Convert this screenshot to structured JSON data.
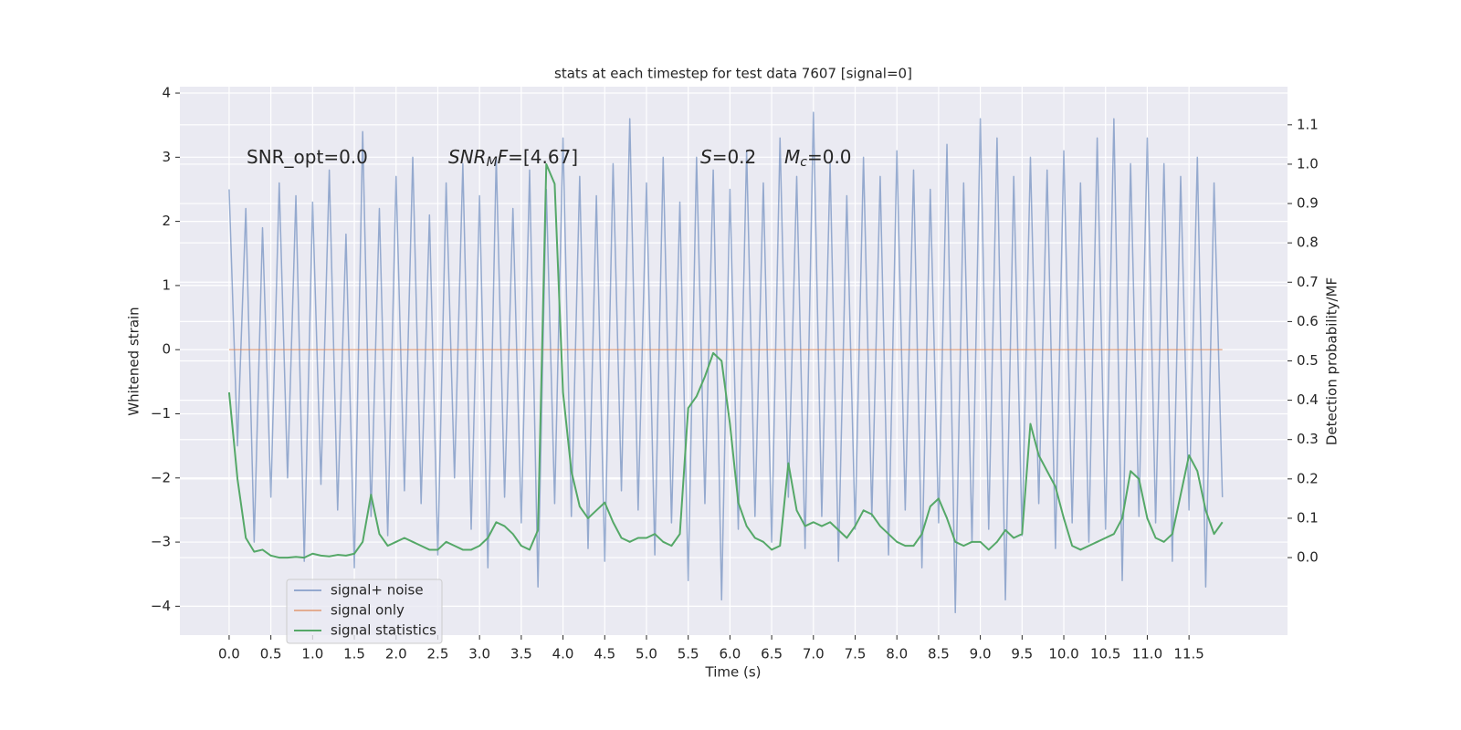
{
  "chart_data": {
    "type": "line",
    "title": "stats at each timestep for test data 7607 [signal=0]",
    "x_label": "Time (s)",
    "y_label": "Whitened strain",
    "y2_label": "Detection probability/MF",
    "annotations": [
      [
        {
          "text": "SNR_opt=0.0"
        }
      ],
      [
        {
          "text": "SNR",
          "italic": true
        },
        {
          "text": "M",
          "italic": true,
          "sub": true
        },
        {
          "text": "F",
          "italic": true
        },
        {
          "text": "=[4.67]"
        }
      ],
      [
        {
          "text": "S",
          "italic": true
        },
        {
          "text": "=0.2"
        }
      ],
      [
        {
          "text": "M",
          "italic": true
        },
        {
          "text": "c",
          "italic": true,
          "sub": true
        },
        {
          "text": "=0.0"
        }
      ]
    ],
    "x": [
      0.0,
      0.1,
      0.2,
      0.3,
      0.4,
      0.5,
      0.6,
      0.7,
      0.8,
      0.9,
      1.0,
      1.1,
      1.2,
      1.3,
      1.4,
      1.5,
      1.6,
      1.7,
      1.8,
      1.9,
      2.0,
      2.1,
      2.2,
      2.3,
      2.4,
      2.5,
      2.6,
      2.7,
      2.8,
      2.9,
      3.0,
      3.1,
      3.2,
      3.3,
      3.4,
      3.5,
      3.6,
      3.7,
      3.8,
      3.9,
      4.0,
      4.1,
      4.2,
      4.3,
      4.4,
      4.5,
      4.6,
      4.7,
      4.8,
      4.9,
      5.0,
      5.1,
      5.2,
      5.3,
      5.4,
      5.5,
      5.6,
      5.7,
      5.8,
      5.9,
      6.0,
      6.1,
      6.2,
      6.3,
      6.4,
      6.5,
      6.6,
      6.7,
      6.8,
      6.9,
      7.0,
      7.1,
      7.2,
      7.3,
      7.4,
      7.5,
      7.6,
      7.7,
      7.8,
      7.9,
      8.0,
      8.1,
      8.2,
      8.3,
      8.4,
      8.5,
      8.6,
      8.7,
      8.8,
      8.9,
      9.0,
      9.1,
      9.2,
      9.3,
      9.4,
      9.5,
      9.6,
      9.7,
      9.8,
      9.9,
      10.0,
      10.1,
      10.2,
      10.3,
      10.4,
      10.5,
      10.6,
      10.7,
      10.8,
      10.9,
      11.0,
      11.1,
      11.2,
      11.3,
      11.4,
      11.5,
      11.6,
      11.7,
      11.8,
      11.9
    ],
    "series": [
      {
        "name": "signal+ noise",
        "color": "#4c72b0",
        "opacity": 0.55,
        "values": [
          2.5,
          -1.5,
          2.2,
          -3.0,
          1.9,
          -2.3,
          2.6,
          -2.0,
          2.4,
          -3.3,
          2.3,
          -2.1,
          2.8,
          -2.5,
          1.8,
          -3.4,
          3.4,
          -2.6,
          2.2,
          -2.9,
          2.7,
          -2.2,
          3.0,
          -2.4,
          2.1,
          -3.2,
          2.6,
          -2.0,
          2.9,
          -2.8,
          2.4,
          -3.4,
          3.0,
          -2.3,
          2.2,
          -2.7,
          2.8,
          -3.7,
          2.5,
          -2.4,
          3.3,
          -2.6,
          2.7,
          -3.1,
          2.4,
          -3.3,
          2.9,
          -2.2,
          3.6,
          -2.5,
          2.6,
          -3.2,
          3.0,
          -2.7,
          2.3,
          -3.6,
          3.0,
          -2.4,
          2.8,
          -3.9,
          2.5,
          -2.8,
          3.1,
          -2.6,
          2.6,
          -3.0,
          3.3,
          -2.3,
          2.7,
          -3.1,
          3.7,
          -2.6,
          2.9,
          -3.3,
          2.4,
          -2.8,
          3.0,
          -2.6,
          2.7,
          -3.2,
          3.1,
          -2.5,
          2.8,
          -3.4,
          2.5,
          -2.7,
          3.2,
          -4.1,
          2.6,
          -3.0,
          3.6,
          -2.8,
          3.3,
          -3.9,
          2.7,
          -2.9,
          3.0,
          -2.4,
          2.8,
          -3.1,
          3.1,
          -2.7,
          2.6,
          -3.0,
          3.3,
          -2.8,
          3.6,
          -3.6,
          2.9,
          -2.6,
          3.3,
          -2.7,
          2.9,
          -3.3,
          2.7,
          -2.5,
          3.0,
          -3.7,
          2.6,
          -2.3
        ]
      },
      {
        "name": "signal only",
        "color": "#dd8452",
        "opacity": 0.6,
        "values": [
          0,
          0,
          0,
          0,
          0,
          0,
          0,
          0,
          0,
          0,
          0,
          0,
          0,
          0,
          0,
          0,
          0,
          0,
          0,
          0,
          0,
          0,
          0,
          0,
          0,
          0,
          0,
          0,
          0,
          0,
          0,
          0,
          0,
          0,
          0,
          0,
          0,
          0,
          0,
          0,
          0,
          0,
          0,
          0,
          0,
          0,
          0,
          0,
          0,
          0,
          0,
          0,
          0,
          0,
          0,
          0,
          0,
          0,
          0,
          0,
          0,
          0,
          0,
          0,
          0,
          0,
          0,
          0,
          0,
          0,
          0,
          0,
          0,
          0,
          0,
          0,
          0,
          0,
          0,
          0,
          0,
          0,
          0,
          0,
          0,
          0,
          0,
          0,
          0,
          0,
          0,
          0,
          0,
          0,
          0,
          0,
          0,
          0,
          0,
          0,
          0,
          0,
          0,
          0,
          0,
          0,
          0,
          0,
          0,
          0,
          0,
          0,
          0,
          0,
          0,
          0,
          0,
          0,
          0,
          0
        ]
      },
      {
        "name": "signal statistics",
        "color": "#55a868",
        "opacity": 1,
        "axis": "y2",
        "values": [
          0.42,
          0.2,
          0.05,
          0.015,
          0.02,
          0.005,
          0.0,
          0.0,
          0.002,
          0.0,
          0.01,
          0.005,
          0.003,
          0.007,
          0.005,
          0.01,
          0.04,
          0.16,
          0.06,
          0.03,
          0.04,
          0.05,
          0.04,
          0.03,
          0.02,
          0.02,
          0.04,
          0.03,
          0.02,
          0.02,
          0.03,
          0.05,
          0.09,
          0.08,
          0.06,
          0.03,
          0.02,
          0.07,
          1.0,
          0.95,
          0.42,
          0.22,
          0.13,
          0.1,
          0.12,
          0.14,
          0.09,
          0.05,
          0.04,
          0.05,
          0.05,
          0.06,
          0.04,
          0.03,
          0.06,
          0.38,
          0.41,
          0.46,
          0.52,
          0.5,
          0.34,
          0.14,
          0.08,
          0.05,
          0.04,
          0.02,
          0.03,
          0.24,
          0.12,
          0.08,
          0.09,
          0.08,
          0.09,
          0.07,
          0.05,
          0.08,
          0.12,
          0.11,
          0.08,
          0.06,
          0.04,
          0.03,
          0.03,
          0.06,
          0.13,
          0.15,
          0.1,
          0.04,
          0.03,
          0.04,
          0.04,
          0.02,
          0.04,
          0.07,
          0.05,
          0.06,
          0.34,
          0.26,
          0.22,
          0.18,
          0.1,
          0.03,
          0.02,
          0.03,
          0.04,
          0.05,
          0.06,
          0.1,
          0.22,
          0.2,
          0.1,
          0.05,
          0.04,
          0.06,
          0.16,
          0.26,
          0.22,
          0.12,
          0.06,
          0.09
        ]
      }
    ],
    "xlim": [
      -0.59,
      12.68
    ],
    "ylim": [
      -4.45,
      4.1
    ],
    "y2lim": [
      -0.197,
      1.197
    ],
    "xticks": [
      {
        "value": 0,
        "label": "0.0"
      },
      {
        "value": 0.5,
        "label": "0.5"
      },
      {
        "value": 1,
        "label": "1.0"
      },
      {
        "value": 1.5,
        "label": "1.5"
      },
      {
        "value": 2,
        "label": "2.0"
      },
      {
        "value": 2.5,
        "label": "2.5"
      },
      {
        "value": 3,
        "label": "3.0"
      },
      {
        "value": 3.5,
        "label": "3.5"
      },
      {
        "value": 4,
        "label": "4.0"
      },
      {
        "value": 4.5,
        "label": "4.5"
      },
      {
        "value": 5,
        "label": "5.0"
      },
      {
        "value": 5.5,
        "label": "5.5"
      },
      {
        "value": 6,
        "label": "6.0"
      },
      {
        "value": 6.5,
        "label": "6.5"
      },
      {
        "value": 7,
        "label": "7.0"
      },
      {
        "value": 7.5,
        "label": "7.5"
      },
      {
        "value": 8,
        "label": "8.0"
      },
      {
        "value": 8.5,
        "label": "8.5"
      },
      {
        "value": 9,
        "label": "9.0"
      },
      {
        "value": 9.5,
        "label": "9.5"
      },
      {
        "value": 10,
        "label": "10.0"
      },
      {
        "value": 10.5,
        "label": "10.5"
      },
      {
        "value": 11,
        "label": "11.0"
      },
      {
        "value": 11.5,
        "label": "11.5"
      }
    ],
    "yticks": [
      {
        "value": -4,
        "label": "−4"
      },
      {
        "value": -3,
        "label": "−3"
      },
      {
        "value": -2,
        "label": "−2"
      },
      {
        "value": -1,
        "label": "−1"
      },
      0,
      1,
      2,
      3,
      4
    ],
    "y2ticks": [
      {
        "value": 0,
        "label": "0.0"
      },
      {
        "value": 0.1,
        "label": "0.1"
      },
      {
        "value": 0.2,
        "label": "0.2"
      },
      {
        "value": 0.3,
        "label": "0.3"
      },
      {
        "value": 0.4,
        "label": "0.4"
      },
      {
        "value": 0.5,
        "label": "0.5"
      },
      {
        "value": 0.6,
        "label": "0.6"
      },
      {
        "value": 0.7,
        "label": "0.7"
      },
      {
        "value": 0.8,
        "label": "0.8"
      },
      {
        "value": 0.9,
        "label": "0.9"
      },
      {
        "value": 1,
        "label": "1.0"
      },
      {
        "value": 1.1,
        "label": "1.1"
      }
    ],
    "grid": true,
    "background": "#eaeaf2",
    "legend": "lower left"
  }
}
